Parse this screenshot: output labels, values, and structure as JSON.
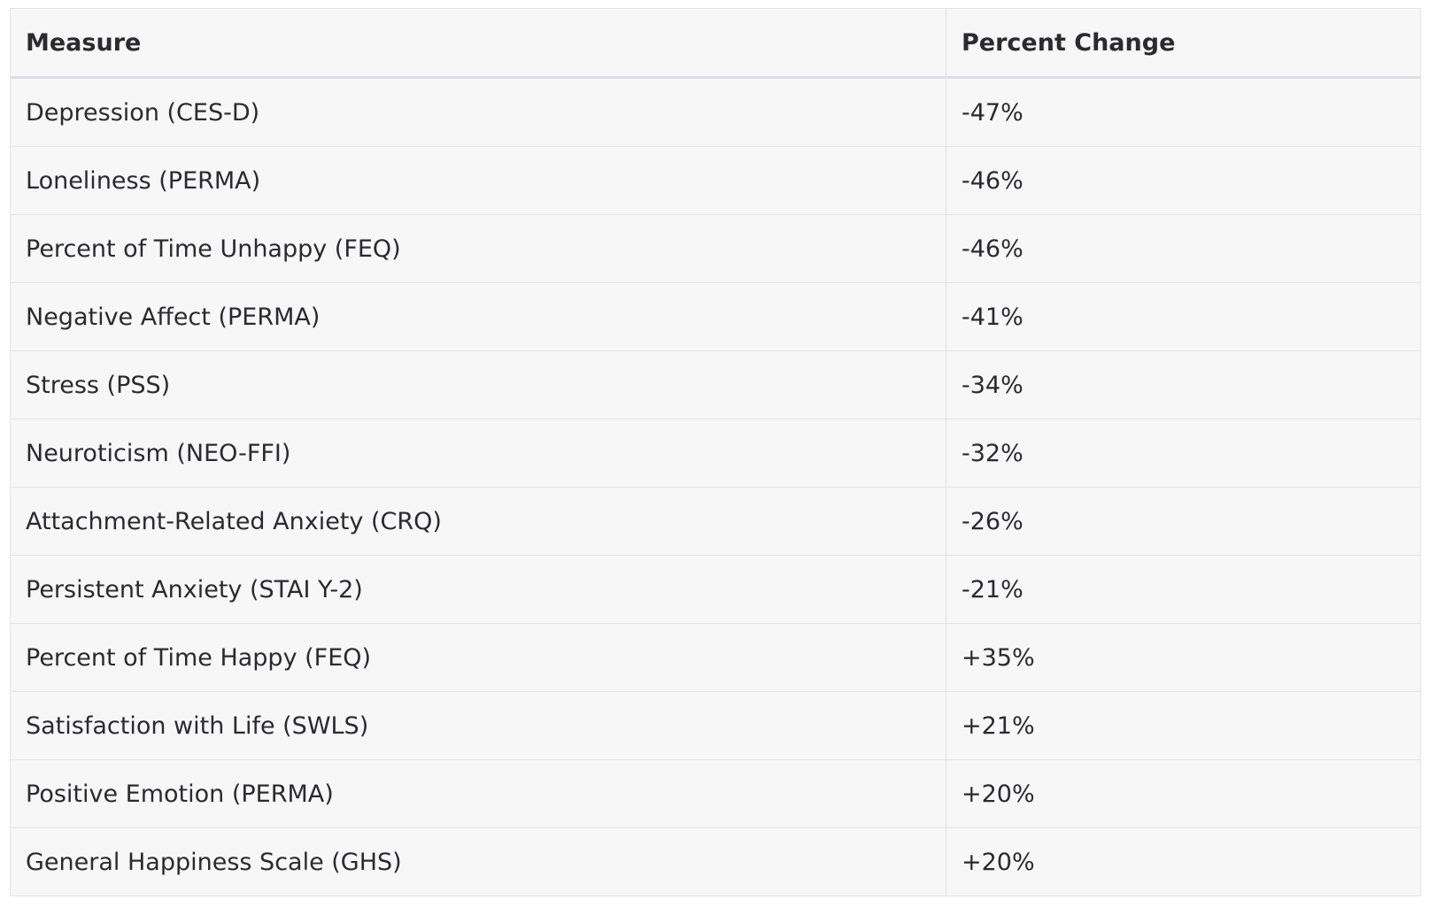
{
  "table": {
    "headers": [
      "Measure",
      "Percent Change"
    ],
    "rows": [
      [
        "Depression (CES-D)",
        "-47%"
      ],
      [
        "Loneliness (PERMA)",
        "-46%"
      ],
      [
        "Percent of Time Unhappy (FEQ)",
        "-46%"
      ],
      [
        "Negative Affect (PERMA)",
        "-41%"
      ],
      [
        "Stress (PSS)",
        "-34%"
      ],
      [
        "Neuroticism (NEO-FFI)",
        "-32%"
      ],
      [
        "Attachment-Related Anxiety (CRQ)",
        "-26%"
      ],
      [
        "Persistent Anxiety (STAI Y-2)",
        "-21%"
      ],
      [
        "Percent of Time Happy (FEQ)",
        "+35%"
      ],
      [
        "Satisfaction with Life (SWLS)",
        "+21%"
      ],
      [
        "Positive Emotion (PERMA)",
        "+20%"
      ],
      [
        "General Happiness Scale (GHS)",
        "+20%"
      ]
    ]
  },
  "colors": {
    "table_background": "#f7f7f8",
    "border": "#e4e4e7",
    "text": "#2b2b2f"
  }
}
